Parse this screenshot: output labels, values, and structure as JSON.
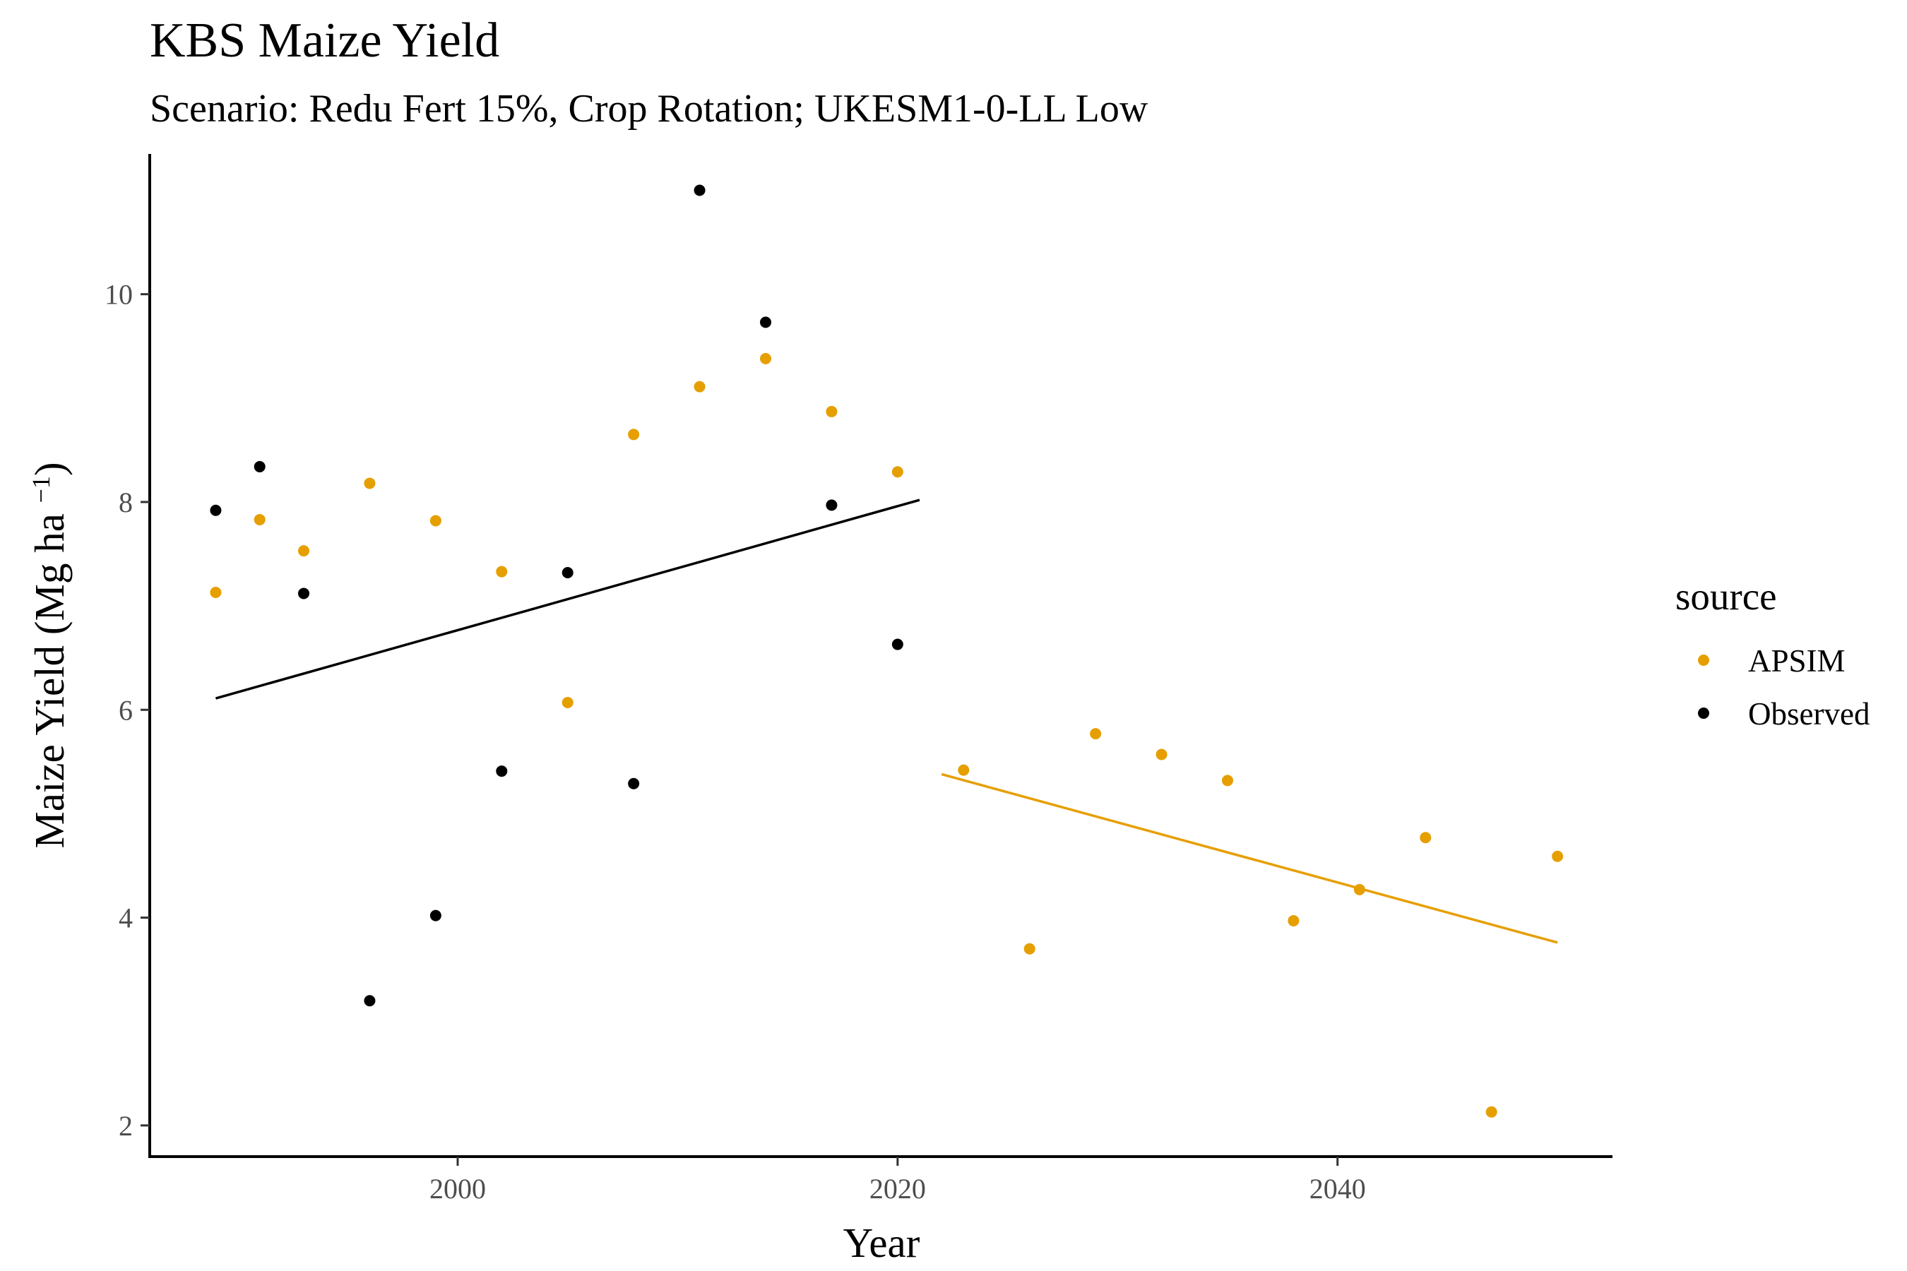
{
  "chart_data": {
    "type": "scatter",
    "title": "KBS Maize Yield",
    "subtitle": "Scenario: Redu Fert 15%, Crop Rotation; UKESM1-0-LL Low",
    "xlabel": "Year",
    "ylabel_main": "Maize Yield (Mg ha ",
    "ylabel_sup": "−1",
    "ylabel_close": ")",
    "xlim": [
      1986,
      2052.5
    ],
    "ylim": [
      1.7,
      11.35
    ],
    "x_ticks": [
      2000,
      2020,
      2040
    ],
    "y_ticks": [
      2,
      4,
      6,
      8,
      10
    ],
    "grid": false,
    "legend": {
      "title": "source",
      "placement": "right",
      "entries": [
        {
          "label": "APSIM",
          "color": "#E69F00"
        },
        {
          "label": "Observed",
          "color": "#000000"
        }
      ]
    },
    "series": [
      {
        "name": "APSIM",
        "color": "#E69F00",
        "points": [
          [
            1989,
            7.13
          ],
          [
            1991,
            7.83
          ],
          [
            1993,
            7.53
          ],
          [
            1996,
            8.18
          ],
          [
            1999,
            7.82
          ],
          [
            2002,
            7.33
          ],
          [
            2005,
            6.07
          ],
          [
            2008,
            8.65
          ],
          [
            2011,
            9.11
          ],
          [
            2014,
            9.38
          ],
          [
            2017,
            8.87
          ],
          [
            2020,
            8.29
          ],
          [
            2023,
            5.42
          ],
          [
            2026,
            3.7
          ],
          [
            2029,
            5.77
          ],
          [
            2032,
            5.57
          ],
          [
            2035,
            5.32
          ],
          [
            2038,
            3.97
          ],
          [
            2041,
            4.27
          ],
          [
            2044,
            4.77
          ],
          [
            2047,
            2.13
          ],
          [
            2050,
            4.59
          ]
        ]
      },
      {
        "name": "Observed",
        "color": "#000000",
        "points": [
          [
            1989,
            7.92
          ],
          [
            1991,
            8.34
          ],
          [
            1993,
            7.12
          ],
          [
            1996,
            3.2
          ],
          [
            1999,
            4.02
          ],
          [
            2002,
            5.41
          ],
          [
            2005,
            7.32
          ],
          [
            2008,
            5.29
          ],
          [
            2011,
            11.0
          ],
          [
            2014,
            9.73
          ],
          [
            2017,
            7.97
          ],
          [
            2020,
            6.63
          ]
        ]
      }
    ],
    "trend_lines": [
      {
        "series": "Observed",
        "color": "#000000",
        "x": [
          1989,
          2021
        ],
        "y": [
          6.11,
          8.02
        ]
      },
      {
        "series": "APSIM",
        "color": "#E69F00",
        "x": [
          2022,
          2050
        ],
        "y": [
          5.38,
          3.76
        ]
      }
    ]
  }
}
